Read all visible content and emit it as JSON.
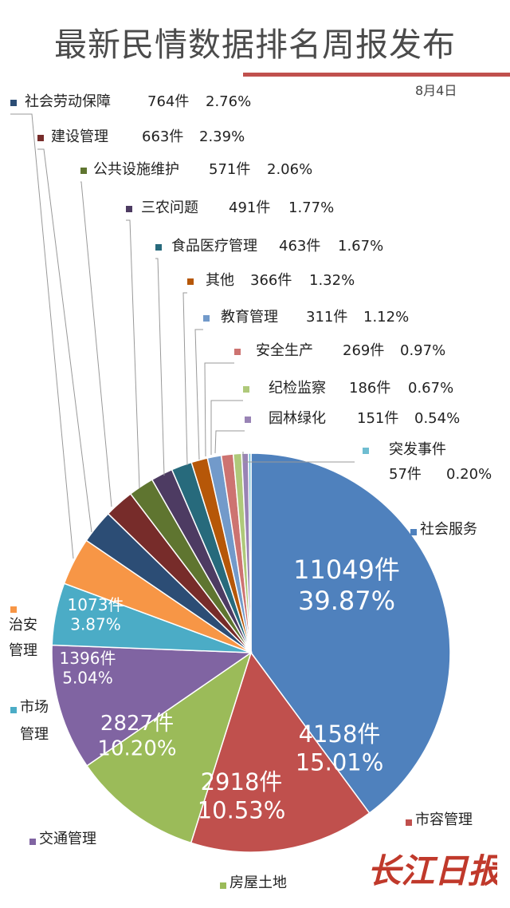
{
  "header": {
    "title": "最新民情数据排名周报发布",
    "date": "8月4日"
  },
  "watermark": {
    "text": "长江日报"
  },
  "colors": {
    "title_rule": "#c0504d"
  },
  "chart_data": {
    "type": "pie",
    "unit": "件",
    "slices": [
      {
        "name": "社会服务",
        "name_lines": [
          "社会服务"
        ],
        "count": 11049,
        "count_label": "11049件",
        "percent": 39.87,
        "percent_label": "39.87%",
        "color": "#4f81bd"
      },
      {
        "name": "市容管理",
        "name_lines": [
          "市容管理"
        ],
        "count": 4158,
        "count_label": "4158件",
        "percent": 15.01,
        "percent_label": "15.01%",
        "color": "#c0504d"
      },
      {
        "name": "房屋土地",
        "name_lines": [
          "房屋土地"
        ],
        "count": 2918,
        "count_label": "2918件",
        "percent": 10.53,
        "percent_label": "10.53%",
        "color": "#9bbb59"
      },
      {
        "name": "交通管理",
        "name_lines": [
          "交通管理"
        ],
        "count": 2827,
        "count_label": "2827件",
        "percent": 10.2,
        "percent_label": "10.20%",
        "color": "#8064a2"
      },
      {
        "name": "市场管理",
        "name_lines": [
          "市场",
          "管理"
        ],
        "count": 1396,
        "count_label": "1396件",
        "percent": 5.04,
        "percent_label": "5.04%",
        "color": "#4bacc6"
      },
      {
        "name": "治安管理",
        "name_lines": [
          "治安",
          "管理"
        ],
        "count": 1073,
        "count_label": "1073件",
        "percent": 3.87,
        "percent_label": "3.87%",
        "color": "#f79646"
      },
      {
        "name": "社会劳动保障",
        "name_lines": [
          "社会劳动保障"
        ],
        "count": 764,
        "count_label": "764件",
        "percent": 2.76,
        "percent_label": "2.76%",
        "color": "#2c4d75"
      },
      {
        "name": "建设管理",
        "name_lines": [
          "建设管理"
        ],
        "count": 663,
        "count_label": "663件",
        "percent": 2.39,
        "percent_label": "2.39%",
        "color": "#772c2a"
      },
      {
        "name": "公共设施维护",
        "name_lines": [
          "公共设施维护"
        ],
        "count": 571,
        "count_label": "571件",
        "percent": 2.06,
        "percent_label": "2.06%",
        "color": "#5f7530"
      },
      {
        "name": "三农问题",
        "name_lines": [
          "三农问题"
        ],
        "count": 491,
        "count_label": "491件",
        "percent": 1.77,
        "percent_label": "1.77%",
        "color": "#4d3b62"
      },
      {
        "name": "食品医疗管理",
        "name_lines": [
          "食品医疗管理"
        ],
        "count": 463,
        "count_label": "463件",
        "percent": 1.67,
        "percent_label": "1.67%",
        "color": "#276a7c"
      },
      {
        "name": "其他",
        "name_lines": [
          "其他"
        ],
        "count": 366,
        "count_label": "366件",
        "percent": 1.32,
        "percent_label": "1.32%",
        "color": "#b65708"
      },
      {
        "name": "教育管理",
        "name_lines": [
          "教育管理"
        ],
        "count": 311,
        "count_label": "311件",
        "percent": 1.12,
        "percent_label": "1.12%",
        "color": "#729aca"
      },
      {
        "name": "安全生产",
        "name_lines": [
          "安全生产"
        ],
        "count": 269,
        "count_label": "269件",
        "percent": 0.97,
        "percent_label": "0.97%",
        "color": "#cd7371"
      },
      {
        "name": "纪检监察",
        "name_lines": [
          "纪检监察"
        ],
        "count": 186,
        "count_label": "186件",
        "percent": 0.67,
        "percent_label": "0.67%",
        "color": "#afc97a"
      },
      {
        "name": "园林绿化",
        "name_lines": [
          "园林绿化"
        ],
        "count": 151,
        "count_label": "151件",
        "percent": 0.54,
        "percent_label": "0.54%",
        "color": "#9983b5"
      },
      {
        "name": "突发事件",
        "name_lines": [
          "突发事件"
        ],
        "count": 57,
        "count_label": "57件",
        "percent": 0.2,
        "percent_label": "0.20%",
        "color": "#6fbdd1"
      }
    ]
  }
}
